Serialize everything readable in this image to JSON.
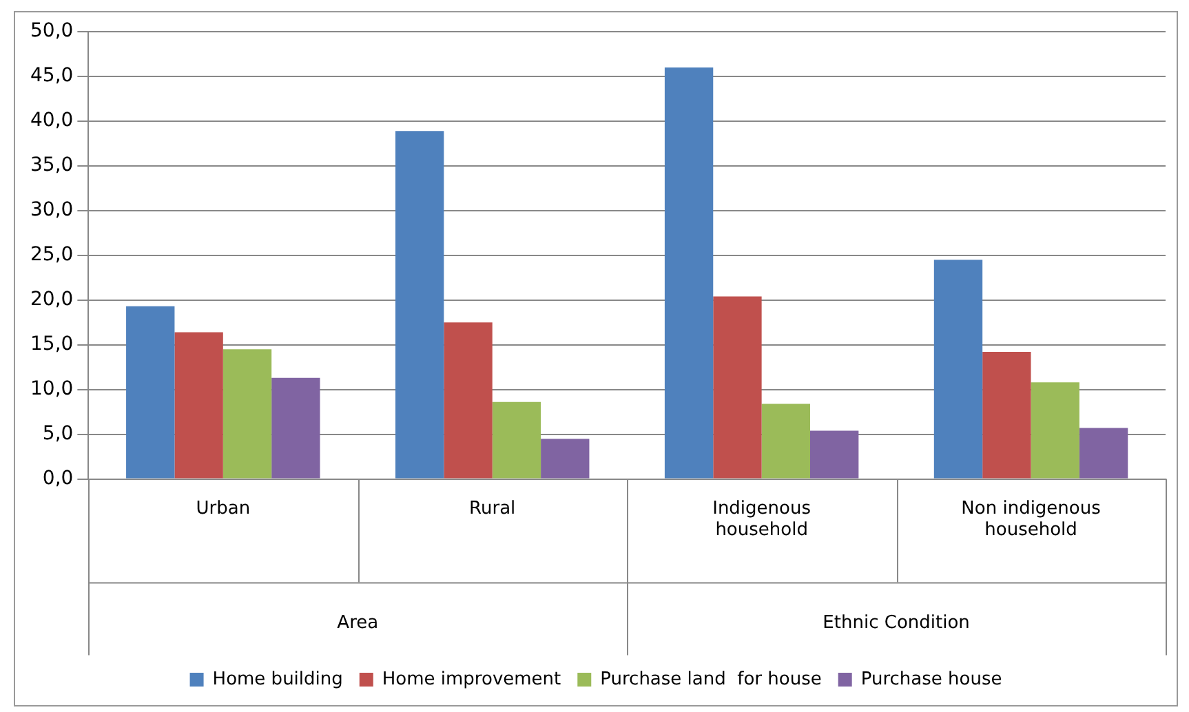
{
  "chart_data": {
    "type": "bar",
    "categories": [
      "Urban",
      "Rural",
      "Indigenous household",
      "Non indigenous household"
    ],
    "series": [
      {
        "name": "Home building",
        "color": "#4f81bd",
        "values": [
          19.3,
          38.9,
          46.0,
          24.5
        ]
      },
      {
        "name": "Home improvement",
        "color": "#c0504d",
        "values": [
          16.4,
          17.5,
          20.4,
          14.2
        ]
      },
      {
        "name": "Purchase land  for house",
        "color": "#9bbb59",
        "values": [
          14.5,
          8.6,
          8.4,
          10.8
        ]
      },
      {
        "name": "Purchase house",
        "color": "#8064a2",
        "values": [
          11.3,
          4.5,
          5.4,
          5.7
        ]
      }
    ],
    "annotations": [
      "Area",
      "Ethnic Condition"
    ],
    "ylim": [
      0,
      50
    ],
    "yticks": [
      {
        "value": 0,
        "label": "0,0"
      },
      {
        "value": 5,
        "label": "5,0"
      },
      {
        "value": 10,
        "label": "10,0"
      },
      {
        "value": 15,
        "label": "15,0"
      },
      {
        "value": 20,
        "label": "20,0"
      },
      {
        "value": 25,
        "label": "25,0"
      },
      {
        "value": 30,
        "label": "30,0"
      },
      {
        "value": 35,
        "label": "35,0"
      },
      {
        "value": 40,
        "label": "40,0"
      },
      {
        "value": 45,
        "label": "45,0"
      },
      {
        "value": 50,
        "label": "50,0"
      }
    ],
    "grid": "y",
    "legend": "bottom"
  }
}
